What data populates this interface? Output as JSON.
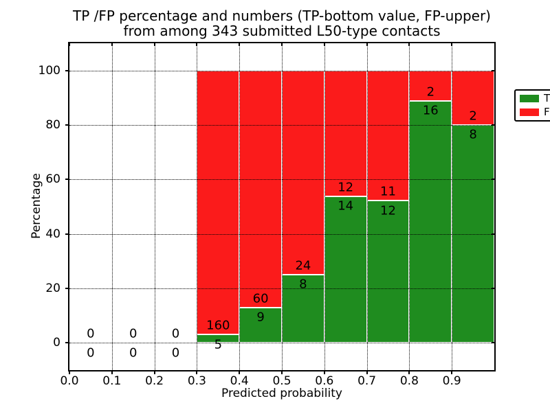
{
  "figure": {
    "title_line1": "TP /FP percentage and numbers (TP-bottom value, FP-upper)",
    "title_line2": "from among 343 submitted L50-type contacts"
  },
  "axes": {
    "x_label": "Predicted probability",
    "y_label": "Percentage",
    "x_tick_labels": [
      "0.0",
      "0.1",
      "0.2",
      "0.3",
      "0.4",
      "0.5",
      "0.6",
      "0.7",
      "0.8",
      "0.9"
    ],
    "y_tick_labels": [
      "0",
      "20",
      "40",
      "60",
      "80",
      "100"
    ]
  },
  "legend": {
    "items": [
      {
        "label": "TP",
        "color": "#1f8c1f"
      },
      {
        "label": "FP",
        "color": "#fb1b1b"
      }
    ]
  },
  "colors": {
    "tp": "#1f8c1f",
    "fp": "#fb1b1b",
    "bar_edge": "#ffffff",
    "text": "#000000"
  },
  "chart_data": {
    "type": "bar",
    "stacked": true,
    "normalized_to_percent": true,
    "title": "TP /FP percentage and numbers (TP-bottom value, FP-upper) from among 343 submitted L50-type contacts",
    "xlabel": "Predicted probability",
    "ylabel": "Percentage",
    "xlim": [
      0.0,
      1.0
    ],
    "ylim": [
      -10,
      110
    ],
    "grid": true,
    "legend_position": "upper right",
    "total_submitted": 343,
    "series": [
      "TP",
      "FP"
    ],
    "bins": [
      {
        "range": [
          0.0,
          0.1
        ],
        "tp": 0,
        "fp": 0,
        "tp_pct": null
      },
      {
        "range": [
          0.1,
          0.2
        ],
        "tp": 0,
        "fp": 0,
        "tp_pct": null
      },
      {
        "range": [
          0.2,
          0.3
        ],
        "tp": 0,
        "fp": 0,
        "tp_pct": null
      },
      {
        "range": [
          0.3,
          0.4
        ],
        "tp": 5,
        "fp": 160,
        "tp_pct": 3.03
      },
      {
        "range": [
          0.4,
          0.5
        ],
        "tp": 9,
        "fp": 60,
        "tp_pct": 13.04
      },
      {
        "range": [
          0.5,
          0.6
        ],
        "tp": 8,
        "fp": 24,
        "tp_pct": 25.0
      },
      {
        "range": [
          0.6,
          0.7
        ],
        "tp": 14,
        "fp": 12,
        "tp_pct": 53.85
      },
      {
        "range": [
          0.7,
          0.8
        ],
        "tp": 12,
        "fp": 11,
        "tp_pct": 52.17
      },
      {
        "range": [
          0.8,
          0.9
        ],
        "tp": 16,
        "fp": 2,
        "tp_pct": 88.89
      },
      {
        "range": [
          0.9,
          1.0
        ],
        "tp": 8,
        "fp": 2,
        "tp_pct": 80.0
      }
    ]
  }
}
